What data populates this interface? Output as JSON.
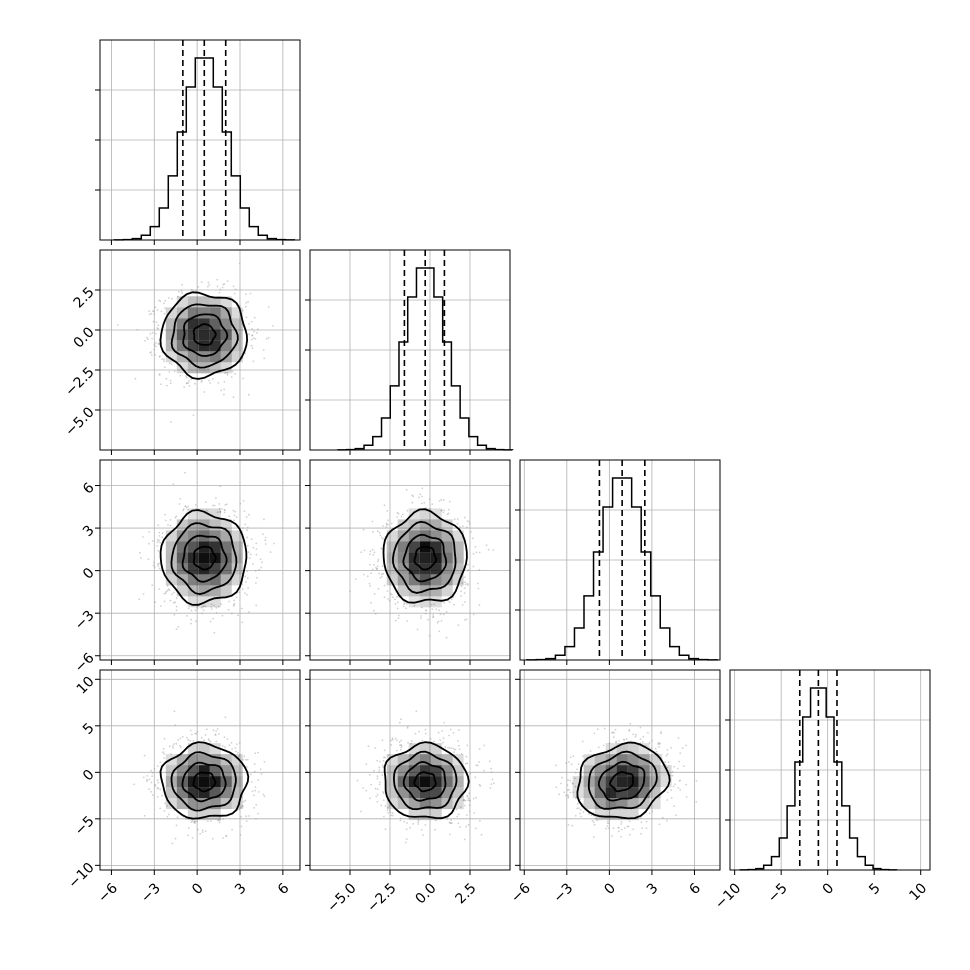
{
  "chart_data": {
    "type": "corner",
    "title": "",
    "parameters": [
      {
        "range": [
          -6.8,
          7.2
        ],
        "ticks": [
          -6,
          -3,
          0,
          3,
          6
        ],
        "tick_labels": [
          "−6",
          "−3",
          "0",
          "3",
          "6"
        ],
        "mean": 0.5,
        "std": 1.5,
        "quantiles": [
          -1.0,
          0.5,
          2.0
        ]
      },
      {
        "range": [
          -7.5,
          5.0
        ],
        "ticks": [
          -5.0,
          -2.5,
          0.0,
          2.5
        ],
        "tick_labels": [
          "−5.0",
          "−2.5",
          "0.0",
          "2.5"
        ],
        "mean": -0.3,
        "std": 1.3,
        "quantiles": [
          -1.6,
          -0.3,
          0.9
        ]
      },
      {
        "range": [
          -6.3,
          7.8
        ],
        "ticks": [
          -6,
          -3,
          0,
          3,
          6
        ],
        "tick_labels": [
          "−6",
          "−3",
          "0",
          "3",
          "6"
        ],
        "mean": 0.9,
        "std": 1.6,
        "quantiles": [
          -0.7,
          0.9,
          2.5
        ]
      },
      {
        "range": [
          -10.5,
          11.0
        ],
        "ticks": [
          -10,
          -5,
          0,
          5,
          10
        ],
        "tick_labels": [
          "−10",
          "−5",
          "0",
          "5",
          "10"
        ],
        "mean": -1.0,
        "std": 2.0,
        "quantiles": [
          -3.0,
          -1.0,
          1.0
        ]
      }
    ],
    "correlations": [
      [
        1.0,
        0.0,
        0.0,
        0.0
      ],
      [
        0.0,
        1.0,
        0.0,
        0.0
      ],
      [
        0.0,
        0.0,
        1.0,
        0.15
      ],
      [
        0.0,
        0.0,
        0.15,
        1.0
      ]
    ],
    "histogram": {
      "bins": 20,
      "style": "step"
    },
    "contour_levels_sigma": [
      0.5,
      1.0,
      1.5,
      2.0
    ],
    "quantile_line_style": "dashed",
    "grid": true,
    "xlabels": [
      "",
      "",
      "",
      ""
    ],
    "ylabels": [
      "",
      "",
      "",
      ""
    ],
    "colors": {
      "lines": "#000000",
      "samples": "#9a9a9a",
      "density": "#000000",
      "grid": "#b0b0b0"
    }
  }
}
